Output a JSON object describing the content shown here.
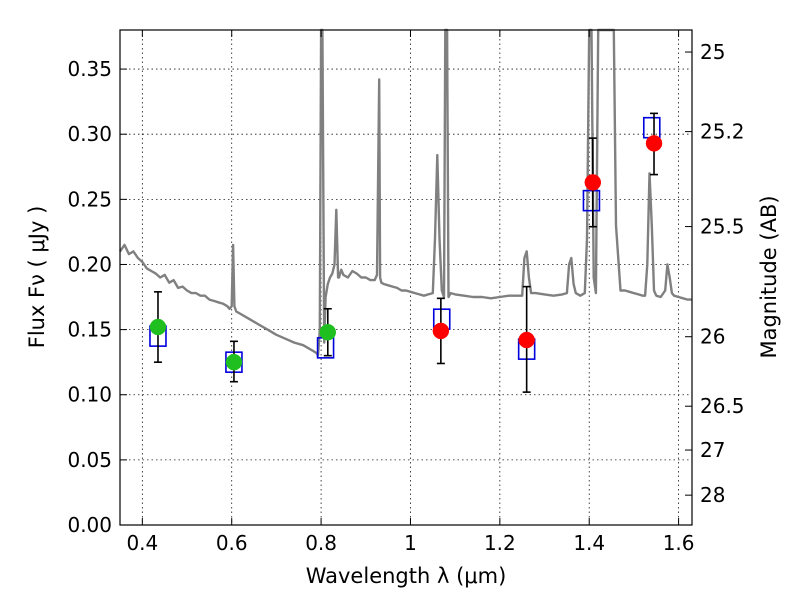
{
  "chart_data": {
    "type": "scatter",
    "xlabel": "Wavelength  λ (μm)",
    "ylabel": "Flux  Fν  ( μJy )",
    "ylabel_right": "Magnitude (AB)",
    "xlim": [
      0.35,
      1.63
    ],
    "ylim": [
      0.0,
      0.38
    ],
    "x_ticks": [
      {
        "value": 0.4,
        "label": "0.4"
      },
      {
        "value": 0.6,
        "label": "0.6"
      },
      {
        "value": 0.8,
        "label": "0.8"
      },
      {
        "value": 1.0,
        "label": "1"
      },
      {
        "value": 1.2,
        "label": "1.2"
      },
      {
        "value": 1.4,
        "label": "1.4"
      },
      {
        "value": 1.6,
        "label": "1.6"
      }
    ],
    "y_ticks": [
      {
        "value": 0.0,
        "label": "0.00"
      },
      {
        "value": 0.05,
        "label": "0.05"
      },
      {
        "value": 0.1,
        "label": "0.10"
      },
      {
        "value": 0.15,
        "label": "0.15"
      },
      {
        "value": 0.2,
        "label": "0.20"
      },
      {
        "value": 0.25,
        "label": "0.25"
      },
      {
        "value": 0.3,
        "label": "0.30"
      },
      {
        "value": 0.35,
        "label": "0.35"
      }
    ],
    "right_ticks": [
      {
        "mag": 25,
        "label": "25"
      },
      {
        "mag": 25.2,
        "label": "25.2"
      },
      {
        "mag": 25.5,
        "label": "25.5"
      },
      {
        "mag": 26,
        "label": "26"
      },
      {
        "mag": 26.5,
        "label": "26.5"
      },
      {
        "mag": 27,
        "label": "27"
      },
      {
        "mag": 28,
        "label": "28"
      }
    ],
    "grid": true,
    "colors": {
      "model": "#808080",
      "model_points": "#0000dd",
      "observed_optical": "#1fbf1f",
      "observed_nir": "#ff0000",
      "error_bar": "#000000"
    },
    "model_spectrum": {
      "x": [
        0.35,
        0.36,
        0.37,
        0.38,
        0.39,
        0.4,
        0.41,
        0.42,
        0.43,
        0.44,
        0.45,
        0.46,
        0.47,
        0.48,
        0.49,
        0.5,
        0.51,
        0.52,
        0.53,
        0.54,
        0.55,
        0.56,
        0.57,
        0.58,
        0.59,
        0.595,
        0.6,
        0.603,
        0.606,
        0.61,
        0.62,
        0.64,
        0.66,
        0.68,
        0.7,
        0.72,
        0.74,
        0.76,
        0.77,
        0.78,
        0.79,
        0.793,
        0.797,
        0.8,
        0.803,
        0.807,
        0.81,
        0.815,
        0.82,
        0.825,
        0.83,
        0.834,
        0.838,
        0.84,
        0.845,
        0.85,
        0.86,
        0.87,
        0.88,
        0.89,
        0.9,
        0.91,
        0.92,
        0.925,
        0.93,
        0.932,
        0.935,
        0.94,
        0.95,
        0.96,
        0.97,
        0.98,
        0.99,
        1.0,
        1.01,
        1.02,
        1.03,
        1.04,
        1.05,
        1.055,
        1.06,
        1.065,
        1.07,
        1.075,
        1.078,
        1.08,
        1.082,
        1.085,
        1.09,
        1.1,
        1.12,
        1.14,
        1.16,
        1.18,
        1.2,
        1.22,
        1.24,
        1.25,
        1.255,
        1.26,
        1.265,
        1.27,
        1.28,
        1.3,
        1.32,
        1.34,
        1.35,
        1.355,
        1.36,
        1.365,
        1.37,
        1.38,
        1.39,
        1.395,
        1.4,
        1.405,
        1.41,
        1.415,
        1.42,
        1.43,
        1.44,
        1.45,
        1.455,
        1.46,
        1.47,
        1.48,
        1.49,
        1.5,
        1.51,
        1.52,
        1.525,
        1.53,
        1.535,
        1.54,
        1.545,
        1.55,
        1.56,
        1.57,
        1.575,
        1.58,
        1.585,
        1.59,
        1.6,
        1.61,
        1.62,
        1.63
      ],
      "y": [
        0.21,
        0.215,
        0.208,
        0.21,
        0.205,
        0.202,
        0.197,
        0.195,
        0.193,
        0.19,
        0.192,
        0.186,
        0.188,
        0.182,
        0.183,
        0.18,
        0.178,
        0.178,
        0.176,
        0.176,
        0.173,
        0.172,
        0.171,
        0.17,
        0.168,
        0.166,
        0.168,
        0.215,
        0.168,
        0.164,
        0.162,
        0.158,
        0.154,
        0.15,
        0.146,
        0.143,
        0.14,
        0.138,
        0.136,
        0.134,
        0.132,
        0.13,
        0.15,
        0.38,
        0.38,
        0.14,
        0.175,
        0.185,
        0.19,
        0.193,
        0.2,
        0.242,
        0.19,
        0.19,
        0.196,
        0.192,
        0.19,
        0.195,
        0.193,
        0.19,
        0.19,
        0.188,
        0.188,
        0.192,
        0.342,
        0.19,
        0.186,
        0.185,
        0.184,
        0.183,
        0.182,
        0.18,
        0.18,
        0.179,
        0.178,
        0.177,
        0.176,
        0.177,
        0.178,
        0.22,
        0.284,
        0.22,
        0.18,
        0.175,
        0.38,
        0.38,
        0.38,
        0.175,
        0.178,
        0.177,
        0.176,
        0.175,
        0.175,
        0.174,
        0.175,
        0.176,
        0.176,
        0.176,
        0.205,
        0.21,
        0.19,
        0.178,
        0.178,
        0.177,
        0.176,
        0.177,
        0.178,
        0.2,
        0.205,
        0.185,
        0.178,
        0.176,
        0.178,
        0.22,
        0.38,
        0.38,
        0.19,
        0.178,
        0.38,
        0.38,
        0.38,
        0.38,
        0.38,
        0.23,
        0.18,
        0.18,
        0.179,
        0.178,
        0.177,
        0.176,
        0.176,
        0.2,
        0.27,
        0.23,
        0.18,
        0.176,
        0.175,
        0.18,
        0.2,
        0.19,
        0.178,
        0.176,
        0.175,
        0.174,
        0.173,
        0.173
      ]
    },
    "series": [
      {
        "role": "model photometry",
        "marker": "square",
        "points": [
          {
            "x": 0.435,
            "y": 0.145
          },
          {
            "x": 0.605,
            "y": 0.125
          },
          {
            "x": 0.81,
            "y": 0.136
          },
          {
            "x": 1.07,
            "y": 0.158
          },
          {
            "x": 1.26,
            "y": 0.135
          },
          {
            "x": 1.405,
            "y": 0.249
          },
          {
            "x": 1.54,
            "y": 0.305
          }
        ]
      },
      {
        "role": "observed optical",
        "marker": "circle",
        "points": [
          {
            "x": 0.435,
            "y": 0.152,
            "err_low": 0.125,
            "err_high": 0.179
          },
          {
            "x": 0.605,
            "y": 0.125,
            "err_low": 0.11,
            "err_high": 0.141
          },
          {
            "x": 0.815,
            "y": 0.148,
            "err_low": 0.13,
            "err_high": 0.166
          }
        ]
      },
      {
        "role": "observed near-infrared",
        "marker": "circle",
        "points": [
          {
            "x": 1.068,
            "y": 0.149,
            "err_low": 0.124,
            "err_high": 0.174
          },
          {
            "x": 1.26,
            "y": 0.142,
            "err_low": 0.102,
            "err_high": 0.183
          },
          {
            "x": 1.408,
            "y": 0.263,
            "err_low": 0.229,
            "err_high": 0.297
          },
          {
            "x": 1.545,
            "y": 0.293,
            "err_low": 0.269,
            "err_high": 0.316
          }
        ]
      }
    ]
  }
}
